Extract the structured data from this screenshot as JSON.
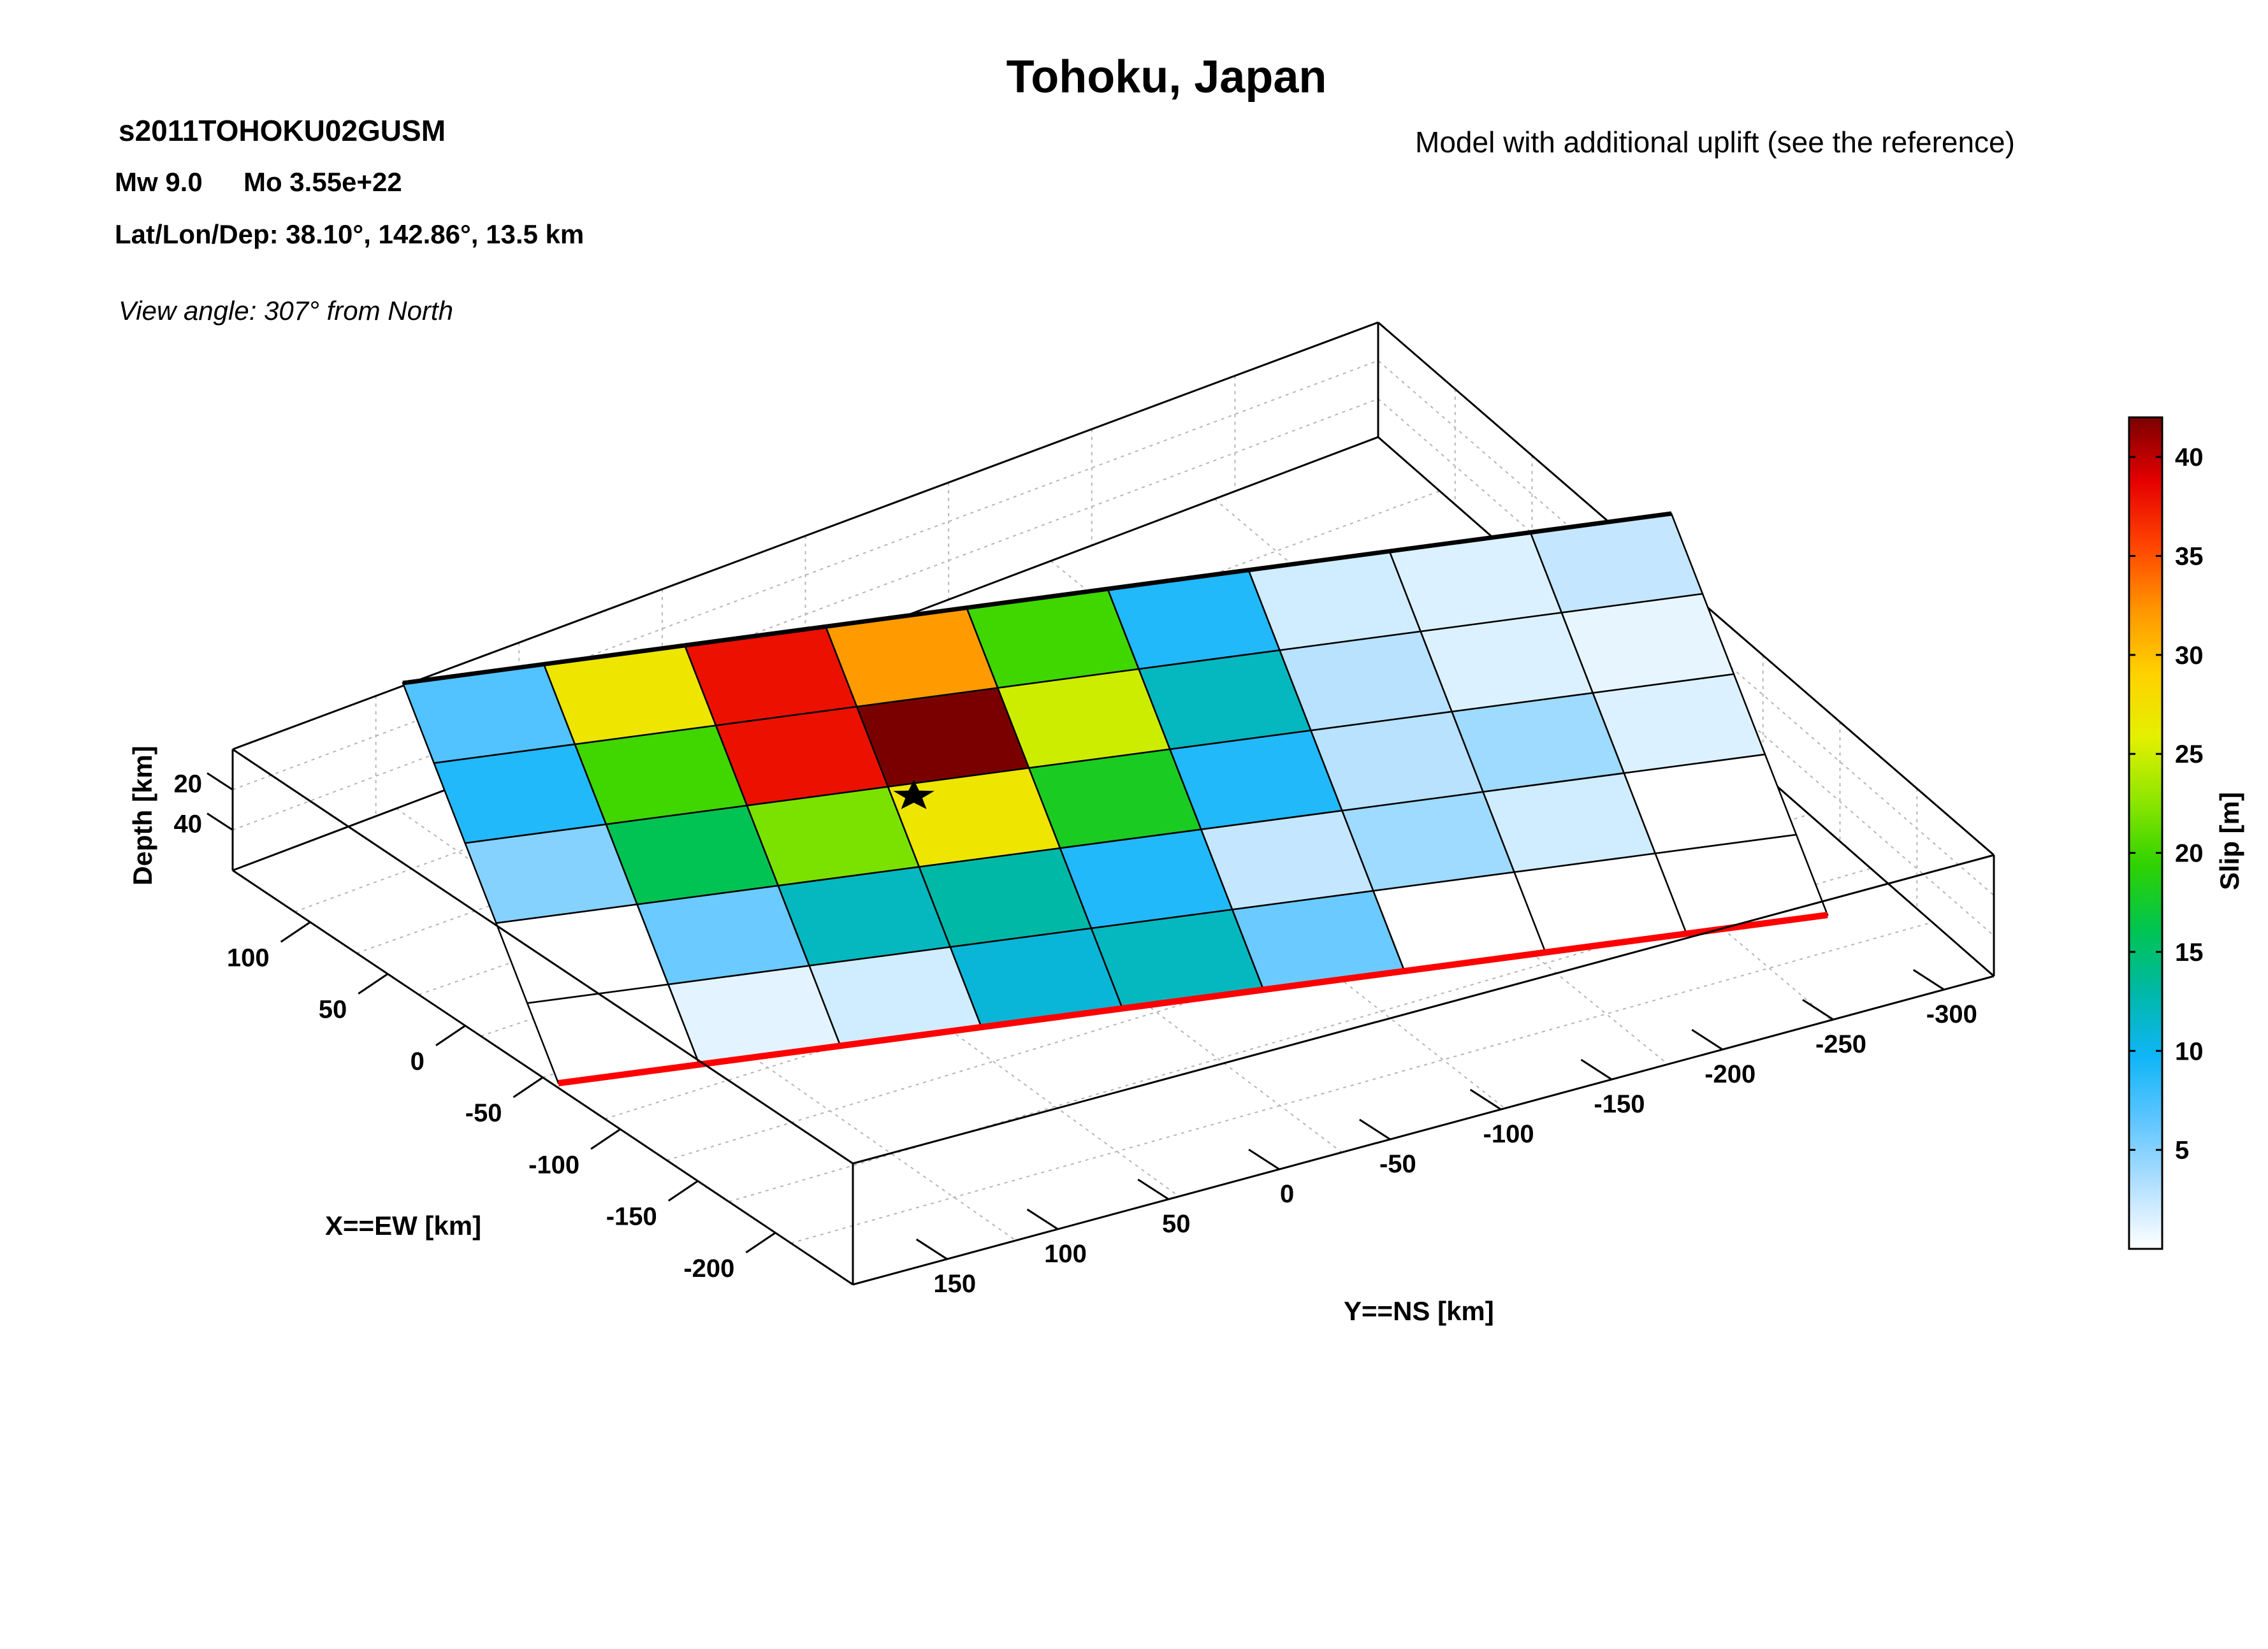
{
  "header": {
    "title": "Tohoku, Japan",
    "model_id": "s2011TOHOKU02GUSM",
    "mw": "Mw 9.0",
    "mo": "Mo 3.55e+22",
    "latlon": "Lat/Lon/Dep: 38.10°, 142.86°, 13.5 km",
    "view_angle": "View angle: 307° from North",
    "note": "Model with additional uplift (see the reference)"
  },
  "chart_data": {
    "type": "heatmap",
    "xlabel": "X==EW [km]",
    "ylabel": "Y==NS [km]",
    "zlabel": "Depth [km]",
    "colorbar_label": "Slip [m]",
    "x_ticks": [
      "100",
      "50",
      "0",
      "-50",
      "-100",
      "-150",
      "-200"
    ],
    "y_ticks": [
      "150",
      "100",
      "50",
      "0",
      "-50",
      "-100",
      "-150",
      "-200",
      "-250",
      "-300"
    ],
    "z_ticks": [
      "20",
      "40"
    ],
    "colorbar_ticks": [
      "5",
      "10",
      "15",
      "20",
      "25",
      "30",
      "35",
      "40"
    ],
    "colorbar_range": [
      0,
      42
    ],
    "rows_along_dip": 5,
    "cols_along_strike": 9,
    "slip": [
      [
        7,
        27,
        38,
        32,
        20,
        9,
        2,
        1.5,
        2.5
      ],
      [
        9,
        20,
        38,
        42,
        25,
        12,
        3,
        1.5,
        1
      ],
      [
        5,
        16,
        22,
        27,
        18,
        9,
        3,
        4,
        1.5
      ],
      [
        0,
        6,
        12,
        13,
        9,
        2.5,
        4,
        2,
        0
      ],
      [
        0,
        1.2,
        2,
        11,
        12,
        6,
        0,
        0,
        0
      ]
    ],
    "hypocenter": {
      "lat": 38.1,
      "lon": 142.86,
      "depth_km": 13.5
    },
    "colormap": [
      "#ffffff",
      "#b3e0ff",
      "#5fc6ff",
      "#10b5f7",
      "#00b8a8",
      "#00c450",
      "#2ed200",
      "#8de600",
      "#e4f000",
      "#ffd100",
      "#ff9500",
      "#ff4400",
      "#e60000",
      "#7a0000"
    ]
  }
}
